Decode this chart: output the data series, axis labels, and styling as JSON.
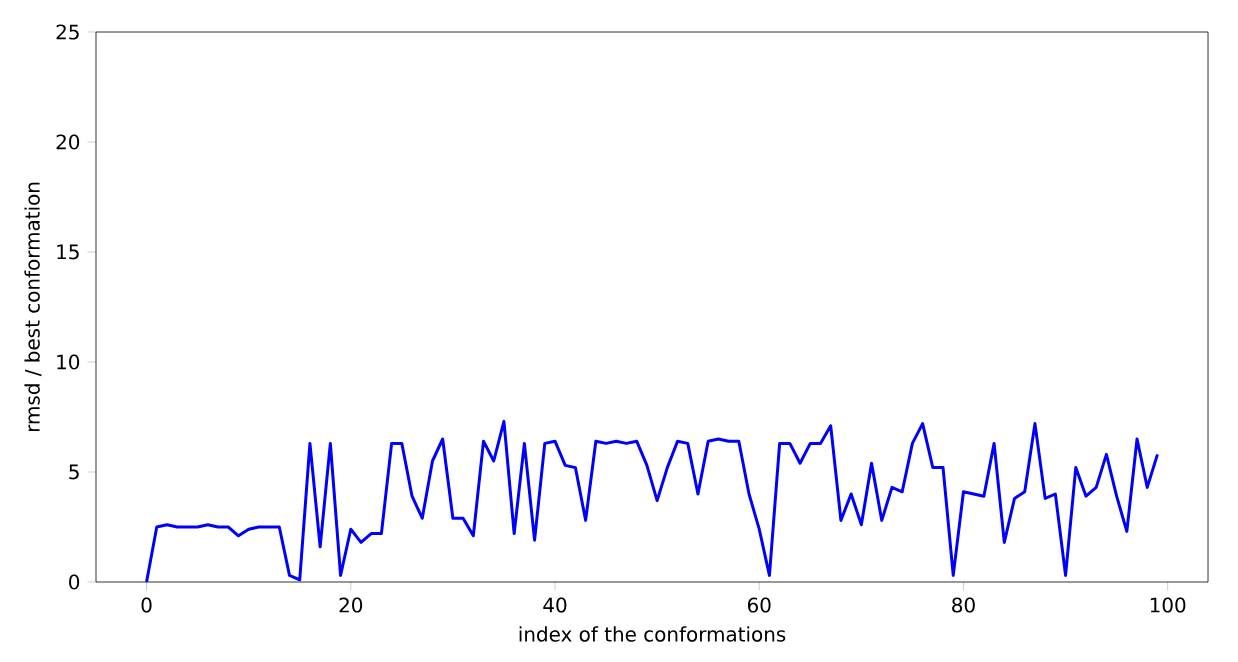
{
  "chart_data": {
    "type": "line",
    "xlabel": "index of the conformations",
    "ylabel": "rmsd / best conformation",
    "xlim": [
      -4.95,
      103.95
    ],
    "ylim": [
      0,
      25
    ],
    "xticks": [
      0,
      20,
      40,
      60,
      80,
      100
    ],
    "yticks": [
      0,
      5,
      10,
      15,
      20,
      25
    ],
    "grid": false,
    "x": [
      0,
      1,
      2,
      3,
      4,
      5,
      6,
      7,
      8,
      9,
      10,
      11,
      12,
      13,
      14,
      15,
      16,
      17,
      18,
      19,
      20,
      21,
      22,
      23,
      24,
      25,
      26,
      27,
      28,
      29,
      30,
      31,
      32,
      33,
      34,
      35,
      36,
      37,
      38,
      39,
      40,
      41,
      42,
      43,
      44,
      45,
      46,
      47,
      48,
      49,
      50,
      51,
      52,
      53,
      54,
      55,
      56,
      57,
      58,
      59,
      60,
      61,
      62,
      63,
      64,
      65,
      66,
      67,
      68,
      69,
      70,
      71,
      72,
      73,
      74,
      75,
      76,
      77,
      78,
      79,
      80,
      81,
      82,
      83,
      84,
      85,
      86,
      87,
      88,
      89,
      90,
      91,
      92,
      93,
      94,
      95,
      96,
      97,
      98,
      99
    ],
    "series": [
      {
        "color": "#0000ff",
        "values": [
          0,
          2.5,
          2.6,
          2.5,
          2.5,
          2.5,
          2.6,
          2.5,
          2.5,
          2.1,
          2.4,
          2.5,
          2.5,
          2.5,
          0.3,
          0.1,
          6.3,
          1.6,
          6.3,
          0.3,
          2.4,
          1.8,
          2.2,
          2.2,
          6.3,
          6.3,
          3.9,
          2.9,
          5.5,
          6.5,
          2.9,
          2.9,
          2.1,
          6.4,
          5.5,
          7.3,
          2.2,
          6.3,
          1.9,
          6.3,
          6.4,
          5.3,
          5.2,
          2.8,
          6.4,
          6.3,
          6.4,
          6.3,
          6.4,
          5.3,
          3.7,
          5.2,
          6.4,
          6.3,
          4.0,
          6.4,
          6.5,
          6.4,
          6.4,
          4.0,
          2.4,
          0.3,
          6.3,
          6.3,
          5.4,
          6.3,
          6.3,
          7.1,
          2.8,
          4.0,
          2.6,
          5.4,
          2.8,
          4.3,
          4.1,
          6.3,
          7.2,
          5.2,
          5.2,
          0.3,
          4.1,
          4.0,
          3.9,
          6.3,
          1.8,
          3.8,
          4.1,
          7.2,
          3.8,
          4.0,
          0.3,
          5.2,
          3.9,
          4.3,
          5.8,
          3.9,
          2.3,
          6.5,
          4.3,
          5.8
        ]
      }
    ]
  }
}
